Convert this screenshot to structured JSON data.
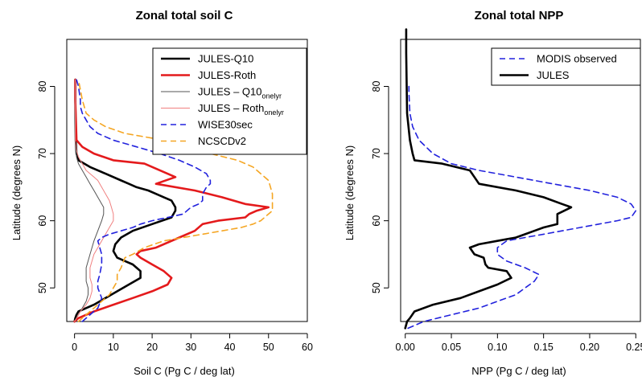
{
  "chart_data": [
    {
      "type": "line",
      "title": "Zonal total soil C",
      "xlabel": "Soil C  (Pg C / deg lat)",
      "ylabel": "Latitude (degrees N)",
      "xlim": [
        0,
        60
      ],
      "ylim": [
        45,
        87
      ],
      "xticks": [
        0,
        10,
        20,
        30,
        40,
        50,
        60
      ],
      "yticks": [
        50,
        60,
        70,
        80
      ],
      "grid": false,
      "legend_position": "top-right",
      "series": [
        {
          "name": "JULES-Q10",
          "color": "#000000",
          "style": "solid",
          "width": 2.6,
          "x": [
            0.0,
            0.2,
            0.5,
            1,
            3,
            5,
            8,
            11,
            14,
            17,
            17,
            16,
            15,
            13,
            11,
            10,
            10.5,
            12,
            15,
            20,
            25,
            26,
            26,
            25,
            23,
            21,
            19,
            16,
            14,
            12,
            8,
            4,
            1,
            0.5,
            0.3,
            0.2,
            0.2
          ],
          "y": [
            45,
            45.5,
            46,
            46.5,
            47,
            47.5,
            48.5,
            49.5,
            50.5,
            51.5,
            52.5,
            53,
            53.5,
            54,
            54.5,
            55.5,
            56.5,
            57.5,
            58.5,
            59.5,
            60.5,
            61.5,
            62,
            63,
            63.5,
            64,
            64.5,
            65,
            65.5,
            66,
            67,
            68,
            69,
            70,
            72,
            78,
            81
          ]
        },
        {
          "name": "JULES-Roth",
          "color": "#e41a1c",
          "style": "solid",
          "width": 2.6,
          "x": [
            0.0,
            1,
            5,
            10,
            15,
            20,
            24,
            25,
            23,
            20,
            17,
            16,
            17,
            21,
            27,
            31,
            33,
            37,
            44,
            45,
            47,
            50,
            44,
            38,
            31,
            21,
            26,
            18,
            10,
            5,
            2,
            0.5,
            0.2,
            0.2
          ],
          "y": [
            45,
            45.5,
            46.5,
            47.5,
            48.5,
            49.5,
            50.5,
            51.5,
            52.5,
            53.5,
            54.5,
            55,
            55.5,
            56,
            57.5,
            58.5,
            59.5,
            60,
            60.5,
            61,
            61.5,
            62,
            62.5,
            63.5,
            64.5,
            65.5,
            66.5,
            68.5,
            69,
            70,
            71,
            72,
            78,
            81
          ]
        },
        {
          "name": "JULES-Q10 onelyr",
          "color": "#555555",
          "style": "solid",
          "width": 1,
          "x": [
            0.0,
            0.5,
            1,
            2,
            3,
            3.5,
            3.5,
            3,
            3,
            4,
            5,
            6,
            7,
            7.5,
            7.5,
            7,
            6,
            5,
            4,
            3,
            2,
            1,
            0.5,
            0.2,
            0.2
          ],
          "y": [
            45,
            45.5,
            46,
            47,
            48,
            49,
            50,
            51,
            53,
            55,
            57,
            58.5,
            60,
            61,
            62,
            62.5,
            63.5,
            64.5,
            65.5,
            66.5,
            67.5,
            68.5,
            69.5,
            72,
            81
          ]
        },
        {
          "name": "JULES-Roth onelyr",
          "color": "#f08080",
          "style": "solid",
          "width": 1,
          "x": [
            0.0,
            0.5,
            1.5,
            3,
            4,
            4.5,
            4.5,
            4,
            4,
            5,
            7,
            9,
            10,
            10,
            9.5,
            9,
            8,
            7,
            6,
            5,
            3,
            2,
            1,
            0.5,
            0.2,
            0.2
          ],
          "y": [
            45,
            45.5,
            46.5,
            47.5,
            48.5,
            49.5,
            50.5,
            51.5,
            53,
            55,
            57,
            59,
            60,
            61,
            62,
            63,
            64,
            65,
            66,
            66.5,
            67.5,
            68.5,
            69.5,
            70.5,
            72,
            81
          ]
        },
        {
          "name": "WISE30sec",
          "color": "#2222dd",
          "style": "dashed",
          "width": 1.6,
          "x": [
            2,
            4,
            6,
            7,
            6,
            6,
            6.5,
            7,
            7,
            6.5,
            6,
            7,
            9,
            12,
            15,
            17,
            20,
            24,
            28,
            30,
            32,
            33,
            33,
            34,
            35,
            35,
            34,
            31,
            27,
            22,
            16,
            10,
            6,
            4,
            3,
            2,
            1.5,
            1.5,
            1,
            0.5
          ],
          "y": [
            45,
            46,
            47,
            48.5,
            50,
            51,
            52,
            53.5,
            55,
            56,
            57,
            57.5,
            58,
            58.5,
            59,
            59.5,
            60,
            60.5,
            61,
            62,
            62.5,
            63,
            64,
            65,
            65.5,
            66,
            67,
            68,
            69,
            70,
            71,
            72,
            73,
            74,
            75,
            76,
            77,
            78,
            80,
            81
          ]
        },
        {
          "name": "NCSCDv2",
          "color": "#f5a623",
          "style": "dashed",
          "width": 1.6,
          "x": [
            1,
            3,
            5,
            7,
            9,
            10,
            11,
            11,
            12,
            13,
            15,
            18,
            23,
            28,
            33,
            38,
            43,
            46,
            48,
            51,
            51,
            50,
            48,
            46,
            42,
            35,
            28,
            23,
            18,
            13,
            8,
            5,
            3,
            2,
            1
          ],
          "y": [
            45,
            46,
            47,
            48,
            49,
            50,
            51,
            52,
            53,
            54.5,
            55,
            56,
            57,
            57.5,
            58,
            58.5,
            59,
            59.5,
            60,
            61.5,
            64,
            66,
            67,
            68,
            69,
            70,
            71,
            72,
            72.5,
            73,
            74,
            75,
            76,
            78,
            81
          ]
        }
      ]
    },
    {
      "type": "line",
      "title": "Zonal total NPP",
      "xlabel": "NPP (Pg C / deg lat)",
      "ylabel": "Latitude (degrees N)",
      "xlim": [
        0,
        0.25
      ],
      "ylim": [
        45,
        87
      ],
      "xticks": [
        0.0,
        0.05,
        0.1,
        0.15,
        0.2,
        0.25
      ],
      "yticks": [
        50,
        60,
        70,
        80
      ],
      "grid": false,
      "legend_position": "top-right",
      "series": [
        {
          "name": "MODIS observed",
          "color": "#2222dd",
          "style": "dashed",
          "width": 1.6,
          "x": [
            0.003,
            0.02,
            0.05,
            0.08,
            0.1,
            0.12,
            0.13,
            0.14,
            0.145,
            0.13,
            0.11,
            0.1,
            0.1,
            0.11,
            0.13,
            0.15,
            0.17,
            0.19,
            0.21,
            0.23,
            0.245,
            0.25,
            0.245,
            0.23,
            0.2,
            0.16,
            0.12,
            0.08,
            0.05,
            0.03,
            0.015,
            0.008,
            0.005,
            0.004,
            0.004
          ],
          "y": [
            44,
            45,
            46,
            47,
            48,
            49,
            50,
            51,
            52,
            53,
            54,
            55,
            56,
            57,
            57.5,
            58,
            58.5,
            59,
            59.5,
            60,
            60.5,
            61.5,
            62.5,
            63.5,
            64.5,
            65.5,
            66.5,
            67.5,
            68.5,
            70,
            72,
            74,
            76,
            79,
            80
          ]
        },
        {
          "name": "JULES",
          "color": "#000000",
          "style": "solid",
          "width": 2.6,
          "x": [
            0.0,
            0.002,
            0.005,
            0.01,
            0.03,
            0.06,
            0.08,
            0.1,
            0.115,
            0.11,
            0.09,
            0.087,
            0.085,
            0.075,
            0.07,
            0.08,
            0.1,
            0.12,
            0.13,
            0.14,
            0.15,
            0.165,
            0.165,
            0.18,
            0.17,
            0.15,
            0.12,
            0.08,
            0.075,
            0.07,
            0.04,
            0.01,
            0.008,
            0.005,
            0.002,
            0.001,
            0.001
          ],
          "y": [
            44,
            45,
            45.5,
            46.5,
            47.5,
            48.5,
            49.5,
            50.5,
            51.5,
            52.5,
            53,
            53.5,
            54.5,
            55,
            56,
            56.5,
            57,
            57.5,
            58,
            58.5,
            59,
            59.5,
            61,
            62,
            62.5,
            63.5,
            64.5,
            65.5,
            66.5,
            67.5,
            68.5,
            69,
            70,
            72,
            76,
            85,
            88.5
          ]
        }
      ]
    }
  ],
  "legends": {
    "soil": [
      {
        "label": "JULES-Q10",
        "sub": ""
      },
      {
        "label": "JULES-Roth",
        "sub": ""
      },
      {
        "label": "JULES – Q10",
        "sub": "onelyr"
      },
      {
        "label": "JULES – Roth",
        "sub": "onelyr"
      },
      {
        "label": "WISE30sec",
        "sub": ""
      },
      {
        "label": "NCSCDv2",
        "sub": ""
      }
    ],
    "npp": [
      {
        "label": "MODIS observed",
        "sub": ""
      },
      {
        "label": "JULES",
        "sub": ""
      }
    ]
  }
}
